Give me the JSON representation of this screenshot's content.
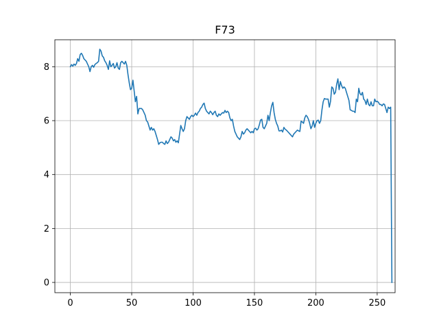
{
  "chart_data": {
    "type": "line",
    "title": "F73",
    "xlabel": "",
    "ylabel": "",
    "xlim": [
      -12.6,
      264.6
    ],
    "ylim": [
      -0.38,
      9.0
    ],
    "xticks": [
      0,
      50,
      100,
      150,
      200,
      250
    ],
    "yticks": [
      0,
      2,
      4,
      6,
      8
    ],
    "grid": true,
    "line_color": "#1f77b4",
    "series": [
      {
        "points": [
          [
            0,
            8.0
          ],
          [
            1,
            8.08
          ],
          [
            2,
            8.02
          ],
          [
            3,
            8.1
          ],
          [
            4,
            8.05
          ],
          [
            5,
            8.12
          ],
          [
            6,
            8.3
          ],
          [
            7,
            8.2
          ],
          [
            8,
            8.45
          ],
          [
            9,
            8.5
          ],
          [
            10,
            8.42
          ],
          [
            11,
            8.3
          ],
          [
            12,
            8.25
          ],
          [
            13,
            8.2
          ],
          [
            14,
            8.1
          ],
          [
            15,
            8.0
          ],
          [
            16,
            7.82
          ],
          [
            17,
            8.0
          ],
          [
            18,
            8.05
          ],
          [
            19,
            7.98
          ],
          [
            20,
            8.08
          ],
          [
            21,
            8.12
          ],
          [
            22,
            8.15
          ],
          [
            23,
            8.2
          ],
          [
            24,
            8.65
          ],
          [
            25,
            8.58
          ],
          [
            26,
            8.4
          ],
          [
            27,
            8.35
          ],
          [
            28,
            8.22
          ],
          [
            29,
            8.15
          ],
          [
            30,
            8.05
          ],
          [
            31,
            7.9
          ],
          [
            32,
            8.22
          ],
          [
            33,
            8.0
          ],
          [
            34,
            8.05
          ],
          [
            35,
            8.12
          ],
          [
            36,
            7.95
          ],
          [
            37,
            8.0
          ],
          [
            38,
            8.15
          ],
          [
            39,
            7.95
          ],
          [
            40,
            7.9
          ],
          [
            41,
            8.15
          ],
          [
            42,
            8.2
          ],
          [
            43,
            8.15
          ],
          [
            44,
            8.1
          ],
          [
            45,
            8.2
          ],
          [
            46,
            8.05
          ],
          [
            47,
            7.7
          ],
          [
            48,
            7.4
          ],
          [
            49,
            7.15
          ],
          [
            50,
            7.2
          ],
          [
            51,
            7.5
          ],
          [
            52,
            7.1
          ],
          [
            53,
            6.7
          ],
          [
            54,
            6.9
          ],
          [
            55,
            6.25
          ],
          [
            56,
            6.45
          ],
          [
            57,
            6.45
          ],
          [
            58,
            6.45
          ],
          [
            59,
            6.4
          ],
          [
            60,
            6.3
          ],
          [
            61,
            6.2
          ],
          [
            62,
            6.0
          ],
          [
            63,
            5.95
          ],
          [
            64,
            5.8
          ],
          [
            65,
            5.65
          ],
          [
            66,
            5.75
          ],
          [
            67,
            5.65
          ],
          [
            68,
            5.7
          ],
          [
            69,
            5.6
          ],
          [
            70,
            5.45
          ],
          [
            71,
            5.3
          ],
          [
            72,
            5.12
          ],
          [
            73,
            5.18
          ],
          [
            74,
            5.2
          ],
          [
            75,
            5.2
          ],
          [
            76,
            5.15
          ],
          [
            77,
            5.12
          ],
          [
            78,
            5.25
          ],
          [
            79,
            5.15
          ],
          [
            80,
            5.2
          ],
          [
            81,
            5.3
          ],
          [
            82,
            5.4
          ],
          [
            83,
            5.35
          ],
          [
            84,
            5.25
          ],
          [
            85,
            5.3
          ],
          [
            86,
            5.2
          ],
          [
            87,
            5.25
          ],
          [
            88,
            5.18
          ],
          [
            89,
            5.5
          ],
          [
            90,
            5.82
          ],
          [
            91,
            5.7
          ],
          [
            92,
            5.6
          ],
          [
            93,
            5.7
          ],
          [
            94,
            6.0
          ],
          [
            95,
            6.15
          ],
          [
            96,
            6.1
          ],
          [
            97,
            6.05
          ],
          [
            98,
            6.15
          ],
          [
            99,
            6.2
          ],
          [
            100,
            6.15
          ],
          [
            101,
            6.2
          ],
          [
            102,
            6.28
          ],
          [
            103,
            6.2
          ],
          [
            104,
            6.3
          ],
          [
            105,
            6.35
          ],
          [
            106,
            6.45
          ],
          [
            107,
            6.5
          ],
          [
            108,
            6.6
          ],
          [
            109,
            6.65
          ],
          [
            110,
            6.45
          ],
          [
            111,
            6.35
          ],
          [
            112,
            6.3
          ],
          [
            113,
            6.25
          ],
          [
            114,
            6.35
          ],
          [
            115,
            6.3
          ],
          [
            116,
            6.22
          ],
          [
            117,
            6.3
          ],
          [
            118,
            6.35
          ],
          [
            119,
            6.2
          ],
          [
            120,
            6.15
          ],
          [
            121,
            6.25
          ],
          [
            122,
            6.2
          ],
          [
            123,
            6.25
          ],
          [
            124,
            6.3
          ],
          [
            125,
            6.28
          ],
          [
            126,
            6.38
          ],
          [
            127,
            6.3
          ],
          [
            128,
            6.35
          ],
          [
            129,
            6.3
          ],
          [
            130,
            6.1
          ],
          [
            131,
            6.0
          ],
          [
            132,
            6.05
          ],
          [
            133,
            5.8
          ],
          [
            134,
            5.6
          ],
          [
            135,
            5.5
          ],
          [
            136,
            5.4
          ],
          [
            137,
            5.35
          ],
          [
            138,
            5.3
          ],
          [
            139,
            5.4
          ],
          [
            140,
            5.6
          ],
          [
            141,
            5.5
          ],
          [
            142,
            5.55
          ],
          [
            143,
            5.65
          ],
          [
            144,
            5.7
          ],
          [
            145,
            5.65
          ],
          [
            146,
            5.6
          ],
          [
            147,
            5.55
          ],
          [
            148,
            5.6
          ],
          [
            149,
            5.55
          ],
          [
            150,
            5.7
          ],
          [
            151,
            5.72
          ],
          [
            152,
            5.65
          ],
          [
            153,
            5.7
          ],
          [
            154,
            5.85
          ],
          [
            155,
            6.02
          ],
          [
            156,
            6.05
          ],
          [
            157,
            5.75
          ],
          [
            158,
            5.7
          ],
          [
            159,
            5.8
          ],
          [
            160,
            5.9
          ],
          [
            161,
            6.2
          ],
          [
            162,
            6.0
          ],
          [
            163,
            6.3
          ],
          [
            164,
            6.55
          ],
          [
            165,
            6.68
          ],
          [
            166,
            6.3
          ],
          [
            167,
            6.05
          ],
          [
            168,
            5.9
          ],
          [
            169,
            5.8
          ],
          [
            170,
            5.62
          ],
          [
            171,
            5.62
          ],
          [
            172,
            5.65
          ],
          [
            173,
            5.58
          ],
          [
            174,
            5.75
          ],
          [
            175,
            5.68
          ],
          [
            176,
            5.65
          ],
          [
            177,
            5.6
          ],
          [
            178,
            5.55
          ],
          [
            179,
            5.5
          ],
          [
            180,
            5.45
          ],
          [
            181,
            5.4
          ],
          [
            182,
            5.5
          ],
          [
            183,
            5.55
          ],
          [
            184,
            5.6
          ],
          [
            185,
            5.65
          ],
          [
            186,
            5.62
          ],
          [
            187,
            5.6
          ],
          [
            188,
            5.98
          ],
          [
            189,
            5.95
          ],
          [
            190,
            5.9
          ],
          [
            191,
            6.1
          ],
          [
            192,
            6.2
          ],
          [
            193,
            6.15
          ],
          [
            194,
            6.05
          ],
          [
            195,
            5.9
          ],
          [
            196,
            5.7
          ],
          [
            197,
            5.8
          ],
          [
            198,
            6.0
          ],
          [
            199,
            5.75
          ],
          [
            200,
            5.9
          ],
          [
            201,
            6.0
          ],
          [
            202,
            6.02
          ],
          [
            203,
            5.9
          ],
          [
            204,
            6.0
          ],
          [
            205,
            6.4
          ],
          [
            206,
            6.7
          ],
          [
            207,
            6.82
          ],
          [
            208,
            6.8
          ],
          [
            209,
            6.8
          ],
          [
            210,
            6.8
          ],
          [
            211,
            6.5
          ],
          [
            212,
            6.72
          ],
          [
            213,
            7.25
          ],
          [
            214,
            7.2
          ],
          [
            215,
            6.98
          ],
          [
            216,
            7.05
          ],
          [
            217,
            7.35
          ],
          [
            218,
            7.55
          ],
          [
            219,
            7.15
          ],
          [
            220,
            7.45
          ],
          [
            221,
            7.3
          ],
          [
            222,
            7.2
          ],
          [
            223,
            7.25
          ],
          [
            224,
            7.2
          ],
          [
            225,
            7.05
          ],
          [
            226,
            6.9
          ],
          [
            227,
            6.75
          ],
          [
            228,
            6.4
          ],
          [
            229,
            6.38
          ],
          [
            230,
            6.35
          ],
          [
            231,
            6.35
          ],
          [
            232,
            6.3
          ],
          [
            233,
            6.8
          ],
          [
            234,
            6.7
          ],
          [
            235,
            7.2
          ],
          [
            236,
            7.0
          ],
          [
            237,
            6.95
          ],
          [
            238,
            7.05
          ],
          [
            239,
            6.8
          ],
          [
            240,
            6.75
          ],
          [
            241,
            6.6
          ],
          [
            242,
            6.8
          ],
          [
            243,
            6.6
          ],
          [
            244,
            6.55
          ],
          [
            245,
            6.7
          ],
          [
            246,
            6.55
          ],
          [
            247,
            6.55
          ],
          [
            248,
            6.8
          ],
          [
            249,
            6.7
          ],
          [
            250,
            6.72
          ],
          [
            251,
            6.68
          ],
          [
            252,
            6.6
          ],
          [
            253,
            6.6
          ],
          [
            254,
            6.55
          ],
          [
            255,
            6.62
          ],
          [
            256,
            6.6
          ],
          [
            257,
            6.45
          ],
          [
            258,
            6.3
          ],
          [
            259,
            6.5
          ],
          [
            260,
            6.45
          ],
          [
            261,
            6.5
          ],
          [
            262,
            0.0
          ]
        ]
      }
    ]
  }
}
